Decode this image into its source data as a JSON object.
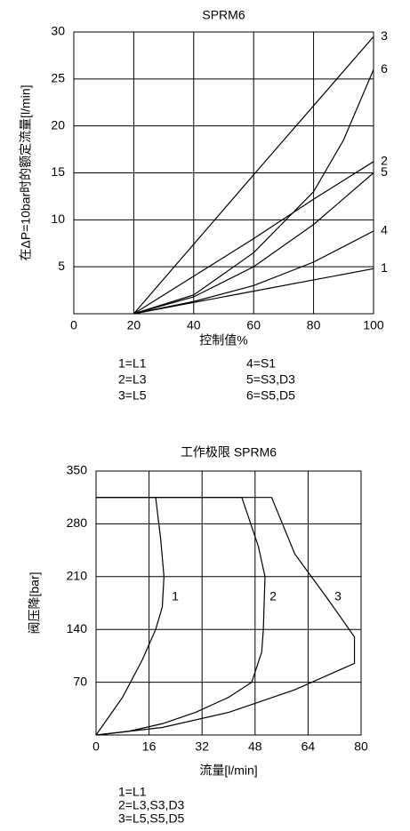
{
  "chart_data": [
    {
      "type": "line",
      "title": "SPRM6",
      "x_label": "控制值%",
      "y_label": "在ΔP=10bar时的额定流量[l/min]",
      "xlim": [
        0,
        100
      ],
      "xticks": [
        0,
        20,
        40,
        60,
        80,
        100
      ],
      "ylim": [
        0,
        30
      ],
      "yticks": [
        5,
        10,
        15,
        20,
        25,
        30
      ],
      "grid": true,
      "color": "#000000",
      "series": [
        {
          "name": "1",
          "x": [
            20,
            40,
            60,
            80,
            100
          ],
          "values": [
            0,
            1.2,
            2.4,
            3.6,
            4.8
          ]
        },
        {
          "name": "2",
          "x": [
            20,
            40,
            60,
            80,
            100
          ],
          "values": [
            0,
            4,
            8,
            12.2,
            16.2
          ]
        },
        {
          "name": "3",
          "x": [
            20,
            60,
            100
          ],
          "values": [
            0,
            14.8,
            29.5
          ]
        },
        {
          "name": "4",
          "x": [
            20,
            40,
            60,
            80,
            100
          ],
          "values": [
            0,
            1.3,
            3,
            5.5,
            8.8
          ]
        },
        {
          "name": "5",
          "x": [
            20,
            40,
            60,
            80,
            100
          ],
          "values": [
            0,
            1.8,
            5,
            9.5,
            15
          ]
        },
        {
          "name": "6",
          "x": [
            20,
            40,
            60,
            80,
            90,
            100
          ],
          "values": [
            0,
            2,
            6.5,
            13,
            18.5,
            26
          ]
        }
      ],
      "legend_text": [
        "1=L1",
        "2=L3",
        "3=L5",
        "4=S1",
        "5=S3,D3",
        "6=S5,D5"
      ]
    },
    {
      "type": "line",
      "title": "工作极限 SPRM6",
      "x_label": "流量[l/min]",
      "y_label": "阀压降[bar]",
      "xlim": [
        0,
        80
      ],
      "xticks": [
        0,
        16,
        32,
        48,
        64,
        80
      ],
      "ylim": [
        0,
        350
      ],
      "yticks": [
        70,
        140,
        210,
        280,
        350
      ],
      "grid": true,
      "color": "#000000",
      "series": [
        {
          "name": "1",
          "x": [
            0,
            8,
            14,
            18,
            20,
            20.5,
            19.5,
            18,
            0
          ],
          "values": [
            0,
            50,
            100,
            140,
            170,
            210,
            260,
            315,
            315
          ]
        },
        {
          "name": "2",
          "x": [
            0,
            10,
            20,
            30,
            40,
            47,
            50,
            50.5,
            51,
            49,
            44,
            0
          ],
          "values": [
            0,
            5,
            15,
            30,
            50,
            70,
            110,
            140,
            210,
            250,
            315,
            315
          ]
        },
        {
          "name": "3",
          "x": [
            0,
            20,
            40,
            60,
            78,
            78,
            70,
            60,
            53,
            0
          ],
          "values": [
            0,
            10,
            30,
            60,
            95,
            130,
            180,
            240,
            315,
            315
          ]
        }
      ],
      "legend_text": [
        "1=L1",
        "2=L3,S3,D3",
        "3=L5,S5,D5"
      ]
    }
  ]
}
